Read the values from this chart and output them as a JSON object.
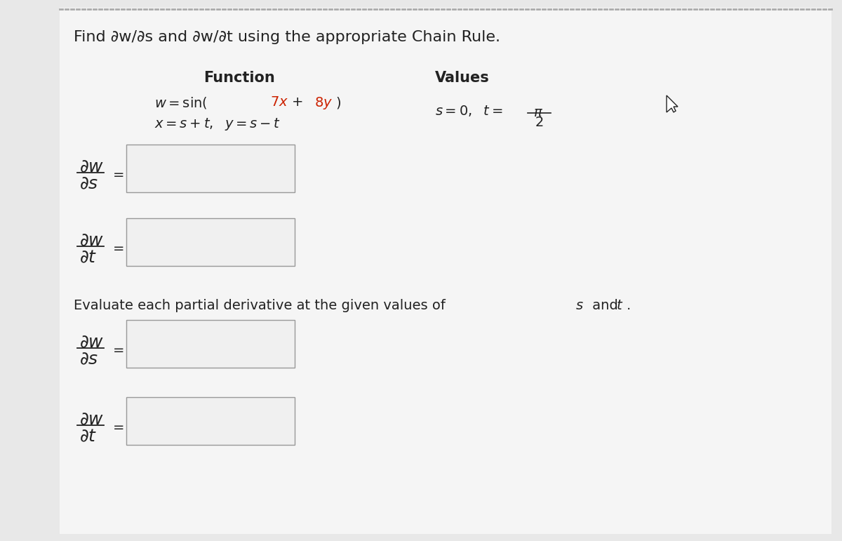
{
  "bg_color": "#e8e8e8",
  "panel_color": "#f5f5f5",
  "box_face_color": "#f0f0f0",
  "box_edge_color": "#999999",
  "text_color": "#222222",
  "red_color": "#cc2200",
  "dot_color": "#aaaaaa",
  "title": "Find ∂w/∂s and ∂w/∂t using the appropriate Chain Rule.",
  "header1": "Function",
  "header2": "Values",
  "eval_text": "Evaluate each partial derivative at the given values of ",
  "eval_text2": "s",
  "eval_text3": " and ",
  "eval_text4": "t",
  "eval_text5": ".",
  "title_fontsize": 16,
  "header_fontsize": 15,
  "body_fontsize": 14,
  "partial_fontsize": 18
}
